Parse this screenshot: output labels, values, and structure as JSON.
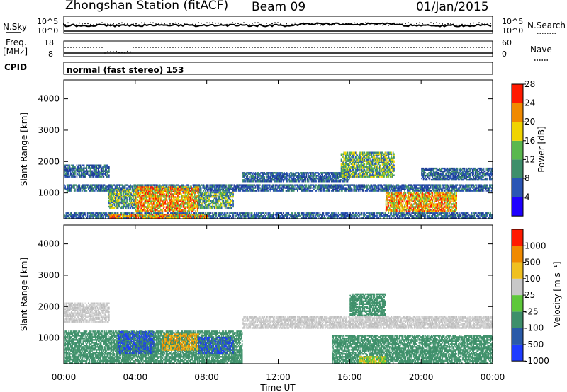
{
  "header": {
    "station": "Zhongshan Station (fitACF)",
    "beam": "Beam 09",
    "date": "01/Jan/2015"
  },
  "top_panels": {
    "nsky_label": "N.Sky",
    "nsky_ticks": [
      "10^5",
      "10^0"
    ],
    "nsearch_label": "N.Search",
    "nsearch_ticks": [
      "10^5",
      "10^0"
    ],
    "freq_label": "Freq.",
    "freq_unit": "[MHz]",
    "freq_ticks": [
      "18",
      "8"
    ],
    "nave_label": "Nave",
    "nave_ticks": [
      "60",
      "0"
    ],
    "cpid_label": "CPID",
    "cpid_text": "normal (fast stereo) 153"
  },
  "chart_data": [
    {
      "type": "heatmap",
      "name": "power",
      "ylabel": "Slant Range [km]",
      "xlabel": "Time UT",
      "ylim": [
        180,
        4600
      ],
      "yticks": [
        "1000",
        "2000",
        "3000",
        "4000"
      ],
      "xticks": [
        "00:00",
        "04:00",
        "08:00",
        "12:00",
        "16:00",
        "20:00",
        "00:00"
      ],
      "xlim_hours": [
        0,
        24
      ],
      "colorbar": {
        "label": "Power [dB]",
        "ticks": [
          "4",
          "8",
          "12",
          "16",
          "20",
          "24",
          "28"
        ],
        "colors": [
          "#1e00ff",
          "#2a55b5",
          "#3e8f6b",
          "#5ab84e",
          "#f0d400",
          "#f08a00",
          "#ff1a00"
        ],
        "range": [
          0,
          30
        ]
      },
      "regions": [
        {
          "t0": 0.0,
          "t1": 2.5,
          "r0": 1500,
          "r1": 1900,
          "level": "low"
        },
        {
          "t0": 0.0,
          "t1": 24.0,
          "r0": 1050,
          "r1": 1250,
          "level": "low"
        },
        {
          "t0": 2.5,
          "t1": 4.0,
          "r0": 500,
          "r1": 1100,
          "level": "mid"
        },
        {
          "t0": 4.0,
          "t1": 7.5,
          "r0": 400,
          "r1": 1200,
          "level": "high"
        },
        {
          "t0": 7.5,
          "t1": 9.5,
          "r0": 500,
          "r1": 1000,
          "level": "mid"
        },
        {
          "t0": 0.0,
          "t1": 24.0,
          "r0": 200,
          "r1": 350,
          "level": "low"
        },
        {
          "t0": 2.5,
          "t1": 8.0,
          "r0": 200,
          "r1": 320,
          "level": "high"
        },
        {
          "t0": 10.0,
          "t1": 16.0,
          "r0": 1350,
          "r1": 1650,
          "level": "low"
        },
        {
          "t0": 15.5,
          "t1": 18.5,
          "r0": 1500,
          "r1": 2300,
          "level": "mid"
        },
        {
          "t0": 18.0,
          "t1": 22.0,
          "r0": 400,
          "r1": 1000,
          "level": "high"
        },
        {
          "t0": 20.0,
          "t1": 24.0,
          "r0": 1400,
          "r1": 1800,
          "level": "low"
        }
      ]
    },
    {
      "type": "heatmap",
      "name": "velocity",
      "ylabel": "Slant Range [km]",
      "xlabel": "Time UT",
      "ylim": [
        180,
        4600
      ],
      "yticks": [
        "1000",
        "2000",
        "3000",
        "4000"
      ],
      "xticks": [
        "00:00",
        "04:00",
        "08:00",
        "12:00",
        "16:00",
        "20:00",
        "00:00"
      ],
      "xlim_hours": [
        0,
        24
      ],
      "colorbar": {
        "label": "Velocity [m s⁻¹]",
        "ticks": [
          "1000",
          "500",
          "100",
          "25",
          "-25",
          "-100",
          "-500",
          "-1000"
        ],
        "colors": [
          "#1e3cff",
          "#2a5aa8",
          "#3e8f6b",
          "#5ec83a",
          "#c8c8c8",
          "#f0c020",
          "#f08a00",
          "#ff1a00"
        ]
      },
      "regions": [
        {
          "t0": 0.0,
          "t1": 2.5,
          "r0": 1500,
          "r1": 2100,
          "level": "grey"
        },
        {
          "t0": 0.0,
          "t1": 10.0,
          "r0": 200,
          "r1": 1200,
          "level": "green"
        },
        {
          "t0": 3.0,
          "t1": 5.0,
          "r0": 500,
          "r1": 1200,
          "level": "blue"
        },
        {
          "t0": 5.5,
          "t1": 7.5,
          "r0": 600,
          "r1": 1100,
          "level": "orange"
        },
        {
          "t0": 7.5,
          "t1": 9.5,
          "r0": 500,
          "r1": 1000,
          "level": "blue"
        },
        {
          "t0": 10.0,
          "t1": 24.0,
          "r0": 1300,
          "r1": 1700,
          "level": "grey"
        },
        {
          "t0": 15.0,
          "t1": 24.0,
          "r0": 200,
          "r1": 1100,
          "level": "green"
        },
        {
          "t0": 16.0,
          "t1": 18.0,
          "r0": 1700,
          "r1": 2400,
          "level": "green"
        },
        {
          "t0": 16.5,
          "t1": 18.0,
          "r0": 200,
          "r1": 400,
          "level": "light-green"
        }
      ]
    }
  ]
}
